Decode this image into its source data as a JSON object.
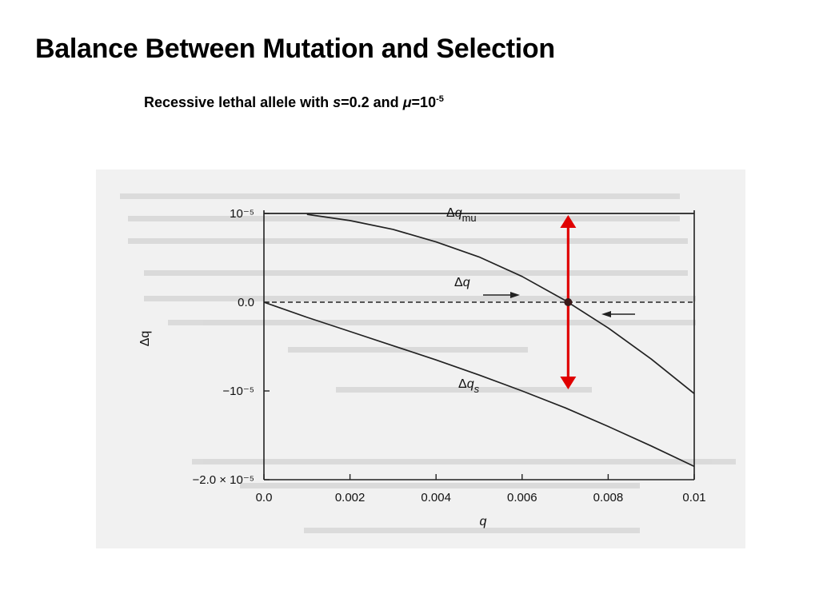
{
  "slide": {
    "title": "Balance Between Mutation and Selection",
    "subtitle_prefix": "Recessive lethal allele with ",
    "subtitle_s": "s",
    "subtitle_mid1": "=0.2 and ",
    "subtitle_mu": "μ",
    "subtitle_mid2": "=10",
    "subtitle_exp": "-5"
  },
  "chart_data": {
    "type": "line",
    "xlabel": "q",
    "ylabel": "Δq",
    "xlim": [
      0.0,
      0.01
    ],
    "ylim": [
      -2e-05,
      1e-05
    ],
    "x_ticks": [
      "0.0",
      "0.002",
      "0.004",
      "0.006",
      "0.008",
      "0.01"
    ],
    "y_ticks": [
      "10⁻⁵",
      "0.0",
      "−10⁻⁵",
      "−2.0 × 10⁻⁵"
    ],
    "series": [
      {
        "name": "Δq_mu",
        "x": [
          0.0,
          0.002,
          0.004,
          0.006,
          0.008,
          0.01
        ],
        "y": [
          1e-05,
          1e-05,
          1e-05,
          1e-05,
          1e-05,
          1e-05
        ]
      },
      {
        "name": "Δq",
        "x": [
          0.001,
          0.002,
          0.003,
          0.004,
          0.005,
          0.006,
          0.007,
          0.008,
          0.009,
          0.01
        ],
        "y": [
          9.9e-06,
          9.2e-06,
          8.2e-06,
          6.8e-06,
          5.1e-06,
          2.9e-06,
          2e-07,
          -2.9e-06,
          -6.4e-06,
          -1.03e-05
        ]
      },
      {
        "name": "Δq_s",
        "x": [
          0.0,
          0.001,
          0.002,
          0.003,
          0.004,
          0.005,
          0.006,
          0.007,
          0.008,
          0.009,
          0.01
        ],
        "y": [
          0.0,
          -1.7e-06,
          -3.3e-06,
          -4.9e-06,
          -6.5e-06,
          -8.2e-06,
          -1e-05,
          -1.19e-05,
          -1.4e-05,
          -1.62e-05,
          -1.85e-05
        ]
      }
    ],
    "series_labels": {
      "mu_base": "Δq",
      "mu_sub": "mu",
      "total": "Δq",
      "s_base": "Δq",
      "s_sub": "s"
    },
    "equilibrium": {
      "q": 0.00707,
      "dq": 0.0
    },
    "equilibrium_arrow_range": [
      -1e-05,
      1e-05
    ],
    "equilibrium_arrow_color": "#e00000",
    "zero_line_dashed": true,
    "grid": false
  }
}
